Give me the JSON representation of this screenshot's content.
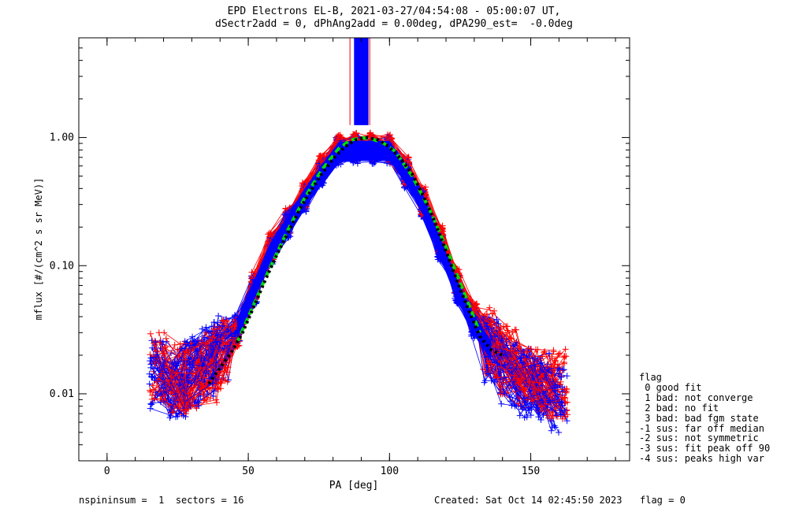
{
  "title_line1": "EPD Electrons EL-B, 2021-03-27/04:54:08 - 05:00:07 UT,",
  "title_line2": "dSectr2add = 0, dPhAng2add = 0.00deg, dPA290_est=  -0.0deg",
  "legend": {
    "title": "flag",
    "items": [
      " 0 good fit",
      " 1 bad: not converge",
      " 2 bad: no fit",
      " 3 bad: bad fgm state",
      "-1 sus: far off median",
      "-2 sus: not symmetric",
      "-3 sus: fit peak off 90",
      "-4 sus: peaks high var"
    ]
  },
  "footer": {
    "left": "nspininsum =  1  sectors = 16",
    "created": "Created: Sat Oct 14 02:45:50 2023",
    "flag": "flag = 0"
  },
  "colors": {
    "series_blue": "#0000ff",
    "series_red": "#ff0000",
    "fit_green": "#00dd00",
    "fit_black": "#000000",
    "axes": "#000000"
  },
  "chart_data": {
    "type": "scatter",
    "title": "EPD Electrons EL-B, 2021-03-27/04:54:08 - 05:00:07 UT,",
    "xlabel": "PA [deg]",
    "ylabel": "mflux [#/(cm^2 s sr MeV)]",
    "xlim": [
      -10,
      185
    ],
    "ylim": [
      0.003,
      6
    ],
    "yscale": "log",
    "x_ticks": [
      "0",
      "50",
      "100",
      "150"
    ],
    "y_ticks": [
      "0.01",
      "0.10",
      "1.00"
    ],
    "grid": false,
    "series": [
      {
        "color": "blue",
        "x": [
          18,
          25,
          30,
          36,
          40,
          46,
          52,
          58,
          64,
          70,
          76,
          82,
          88,
          94,
          100,
          106,
          112,
          118,
          124,
          130,
          136,
          142,
          148,
          154,
          160
        ],
        "y": [
          0.014,
          0.012,
          0.015,
          0.018,
          0.022,
          0.032,
          0.065,
          0.13,
          0.21,
          0.34,
          0.52,
          0.78,
          0.8,
          0.8,
          0.8,
          0.52,
          0.3,
          0.14,
          0.065,
          0.035,
          0.022,
          0.014,
          0.012,
          0.011,
          0.009
        ]
      },
      {
        "color": "red",
        "x": [
          18,
          25,
          30,
          36,
          40,
          46,
          52,
          58,
          64,
          70,
          76,
          82,
          88,
          94,
          100,
          106,
          112,
          118,
          124,
          130,
          136,
          142,
          148,
          154,
          160
        ],
        "y": [
          0.016,
          0.013,
          0.014,
          0.016,
          0.02,
          0.03,
          0.07,
          0.14,
          0.23,
          0.37,
          0.58,
          0.82,
          0.85,
          0.85,
          0.82,
          0.55,
          0.32,
          0.16,
          0.075,
          0.04,
          0.025,
          0.018,
          0.014,
          0.012,
          0.012
        ]
      },
      {
        "color": "green",
        "style": "dashed",
        "x": [
          46,
          52,
          58,
          64,
          70,
          76,
          82,
          86,
          90,
          94,
          98,
          102,
          108,
          114,
          120,
          126,
          132
        ],
        "y": [
          0.025,
          0.05,
          0.1,
          0.19,
          0.34,
          0.56,
          0.82,
          0.95,
          1.0,
          0.97,
          0.9,
          0.78,
          0.5,
          0.28,
          0.14,
          0.065,
          0.03
        ]
      },
      {
        "color": "black",
        "style": "dotted",
        "x": [
          36,
          40,
          44,
          48,
          52,
          56,
          60,
          64,
          68,
          72,
          76,
          80,
          84,
          88,
          92,
          96,
          100,
          104,
          108,
          112,
          116,
          120,
          124,
          128,
          132,
          136,
          140
        ],
        "y": [
          0.012,
          0.016,
          0.021,
          0.03,
          0.048,
          0.077,
          0.12,
          0.18,
          0.27,
          0.38,
          0.52,
          0.68,
          0.84,
          0.96,
          1.0,
          0.96,
          0.84,
          0.68,
          0.52,
          0.35,
          0.22,
          0.13,
          0.075,
          0.045,
          0.028,
          0.022,
          0.02
        ]
      }
    ]
  }
}
